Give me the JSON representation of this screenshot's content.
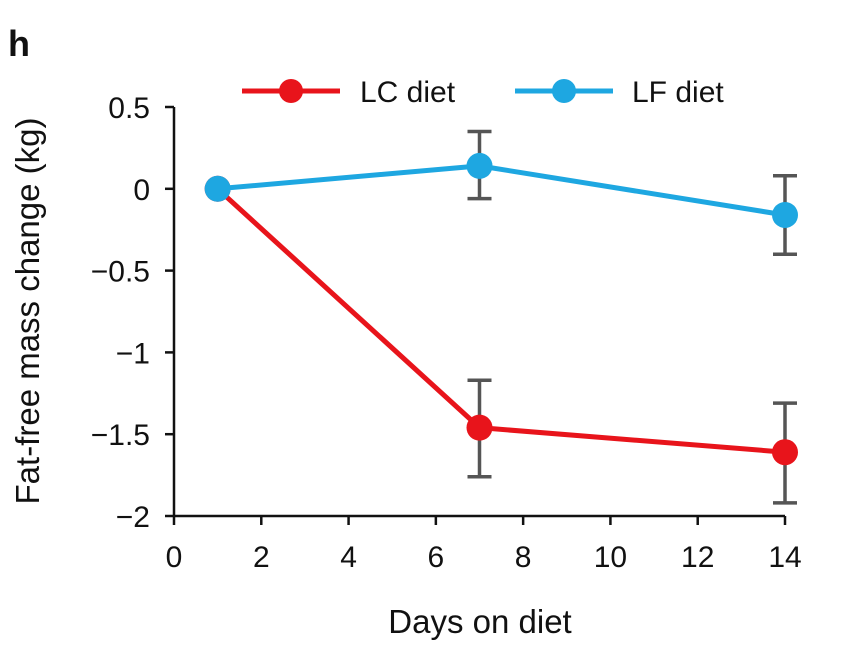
{
  "panel_label": "h",
  "chart_data": {
    "type": "line",
    "title": "",
    "xlabel": "Days on diet",
    "ylabel": "Fat-free mass change (kg)",
    "xlim": [
      0,
      14
    ],
    "ylim": [
      -2,
      0.5
    ],
    "x_ticks": [
      0,
      2,
      4,
      6,
      8,
      10,
      12,
      14
    ],
    "x_tick_labels": [
      "0",
      "2",
      "4",
      "6",
      "8",
      "10",
      "12",
      "14"
    ],
    "y_ticks": [
      0.5,
      0,
      -0.5,
      -1,
      -1.5,
      -2
    ],
    "y_tick_labels": [
      "0.5",
      "0",
      "−0.5",
      "−1",
      "−1.5",
      "−2"
    ],
    "grid": false,
    "legend_position": "top",
    "series": [
      {
        "name": "LC diet",
        "color": "#e8141b",
        "x": [
          1,
          7,
          14
        ],
        "y": [
          0,
          -1.46,
          -1.61
        ],
        "err_low": [
          null,
          -1.76,
          -1.92
        ],
        "err_high": [
          null,
          -1.17,
          -1.31
        ]
      },
      {
        "name": "LF diet",
        "color": "#1ea7e1",
        "x": [
          1,
          7,
          14
        ],
        "y": [
          0,
          0.14,
          -0.16
        ],
        "err_low": [
          null,
          -0.06,
          -0.4
        ],
        "err_high": [
          null,
          0.35,
          0.08
        ]
      }
    ],
    "error_bar_color": "#555555"
  }
}
